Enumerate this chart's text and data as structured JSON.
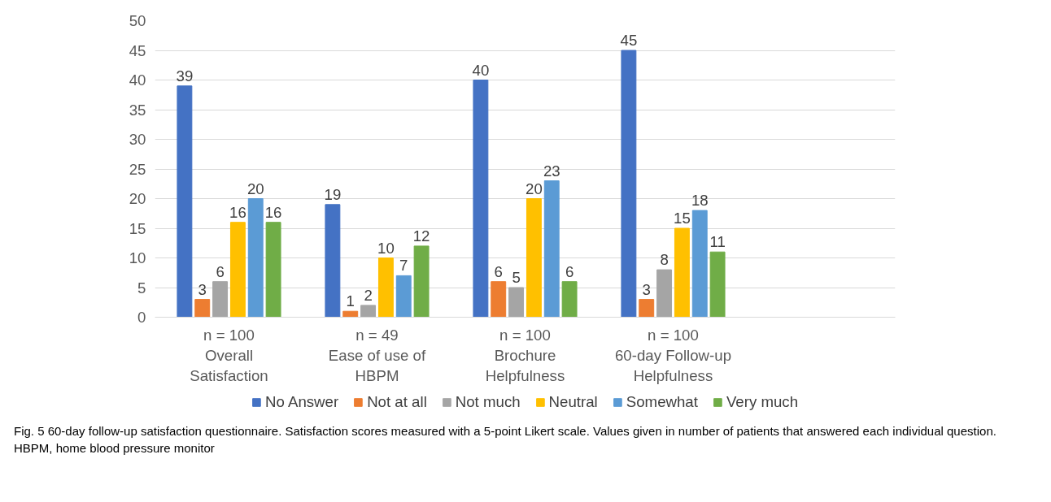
{
  "chart_data": {
    "type": "bar",
    "categories": [
      "n = 100\nOverall\nSatisfaction",
      "n = 49\nEase of use of\nHBPM",
      "n = 100\nBrochure\nHelpfulness",
      "n = 100\n60-day Follow-up\nHelpfulness",
      null
    ],
    "series": [
      {
        "name": "No Answer",
        "color": "#4472c4",
        "values": [
          39,
          19,
          40,
          45,
          null
        ]
      },
      {
        "name": "Not at all",
        "color": "#ed7d31",
        "values": [
          3,
          1,
          6,
          3,
          null
        ]
      },
      {
        "name": "Not much",
        "color": "#a5a5a5",
        "values": [
          6,
          2,
          5,
          8,
          null
        ]
      },
      {
        "name": "Neutral",
        "color": "#ffc000",
        "values": [
          16,
          10,
          20,
          15,
          null
        ]
      },
      {
        "name": "Somewhat",
        "color": "#5b9bd5",
        "values": [
          20,
          7,
          23,
          18,
          null
        ]
      },
      {
        "name": "Very much",
        "color": "#70ad47",
        "values": [
          16,
          12,
          6,
          11,
          null
        ]
      }
    ],
    "ylim": [
      0,
      50
    ],
    "yticks": [
      0,
      5,
      10,
      15,
      20,
      25,
      30,
      35,
      40,
      45,
      50
    ],
    "grid": "y",
    "legend": "bottom",
    "data_labels": true,
    "annotations": [
      "Fig. 5 60-day follow-up satisfaction questionnaire. Satisfaction scores measured with a 5-point Likert scale. Values given in number of patients that answered each individual question. HBPM, home blood pressure monitor"
    ]
  }
}
